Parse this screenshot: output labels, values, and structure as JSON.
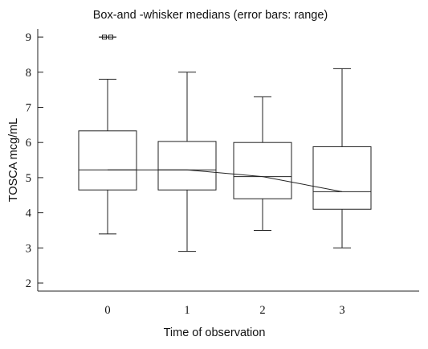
{
  "chart_data": {
    "type": "box",
    "title": "Box-and -whisker medians (error bars: range)",
    "xlabel": "Time of observation",
    "ylabel": "TOSCA mcg/mL",
    "ylim": [
      2,
      9
    ],
    "yticks": [
      2,
      3,
      4,
      5,
      6,
      7,
      8,
      9
    ],
    "categories": [
      "0",
      "1",
      "2",
      "3"
    ],
    "boxes": [
      {
        "category": "0",
        "min": 3.4,
        "q1": 4.65,
        "median": 5.22,
        "q3": 6.33,
        "max": 7.8,
        "outliers": [
          9.0,
          9.0
        ]
      },
      {
        "category": "1",
        "min": 2.9,
        "q1": 4.65,
        "median": 5.22,
        "q3": 6.03,
        "max": 8.0,
        "outliers": []
      },
      {
        "category": "2",
        "min": 3.5,
        "q1": 4.4,
        "median": 5.03,
        "q3": 6.0,
        "max": 7.3,
        "outliers": []
      },
      {
        "category": "3",
        "min": 3.0,
        "q1": 4.1,
        "median": 4.6,
        "q3": 5.88,
        "max": 8.1,
        "outliers": []
      }
    ],
    "median_trend_line": true,
    "grid": false,
    "legend": "none"
  }
}
